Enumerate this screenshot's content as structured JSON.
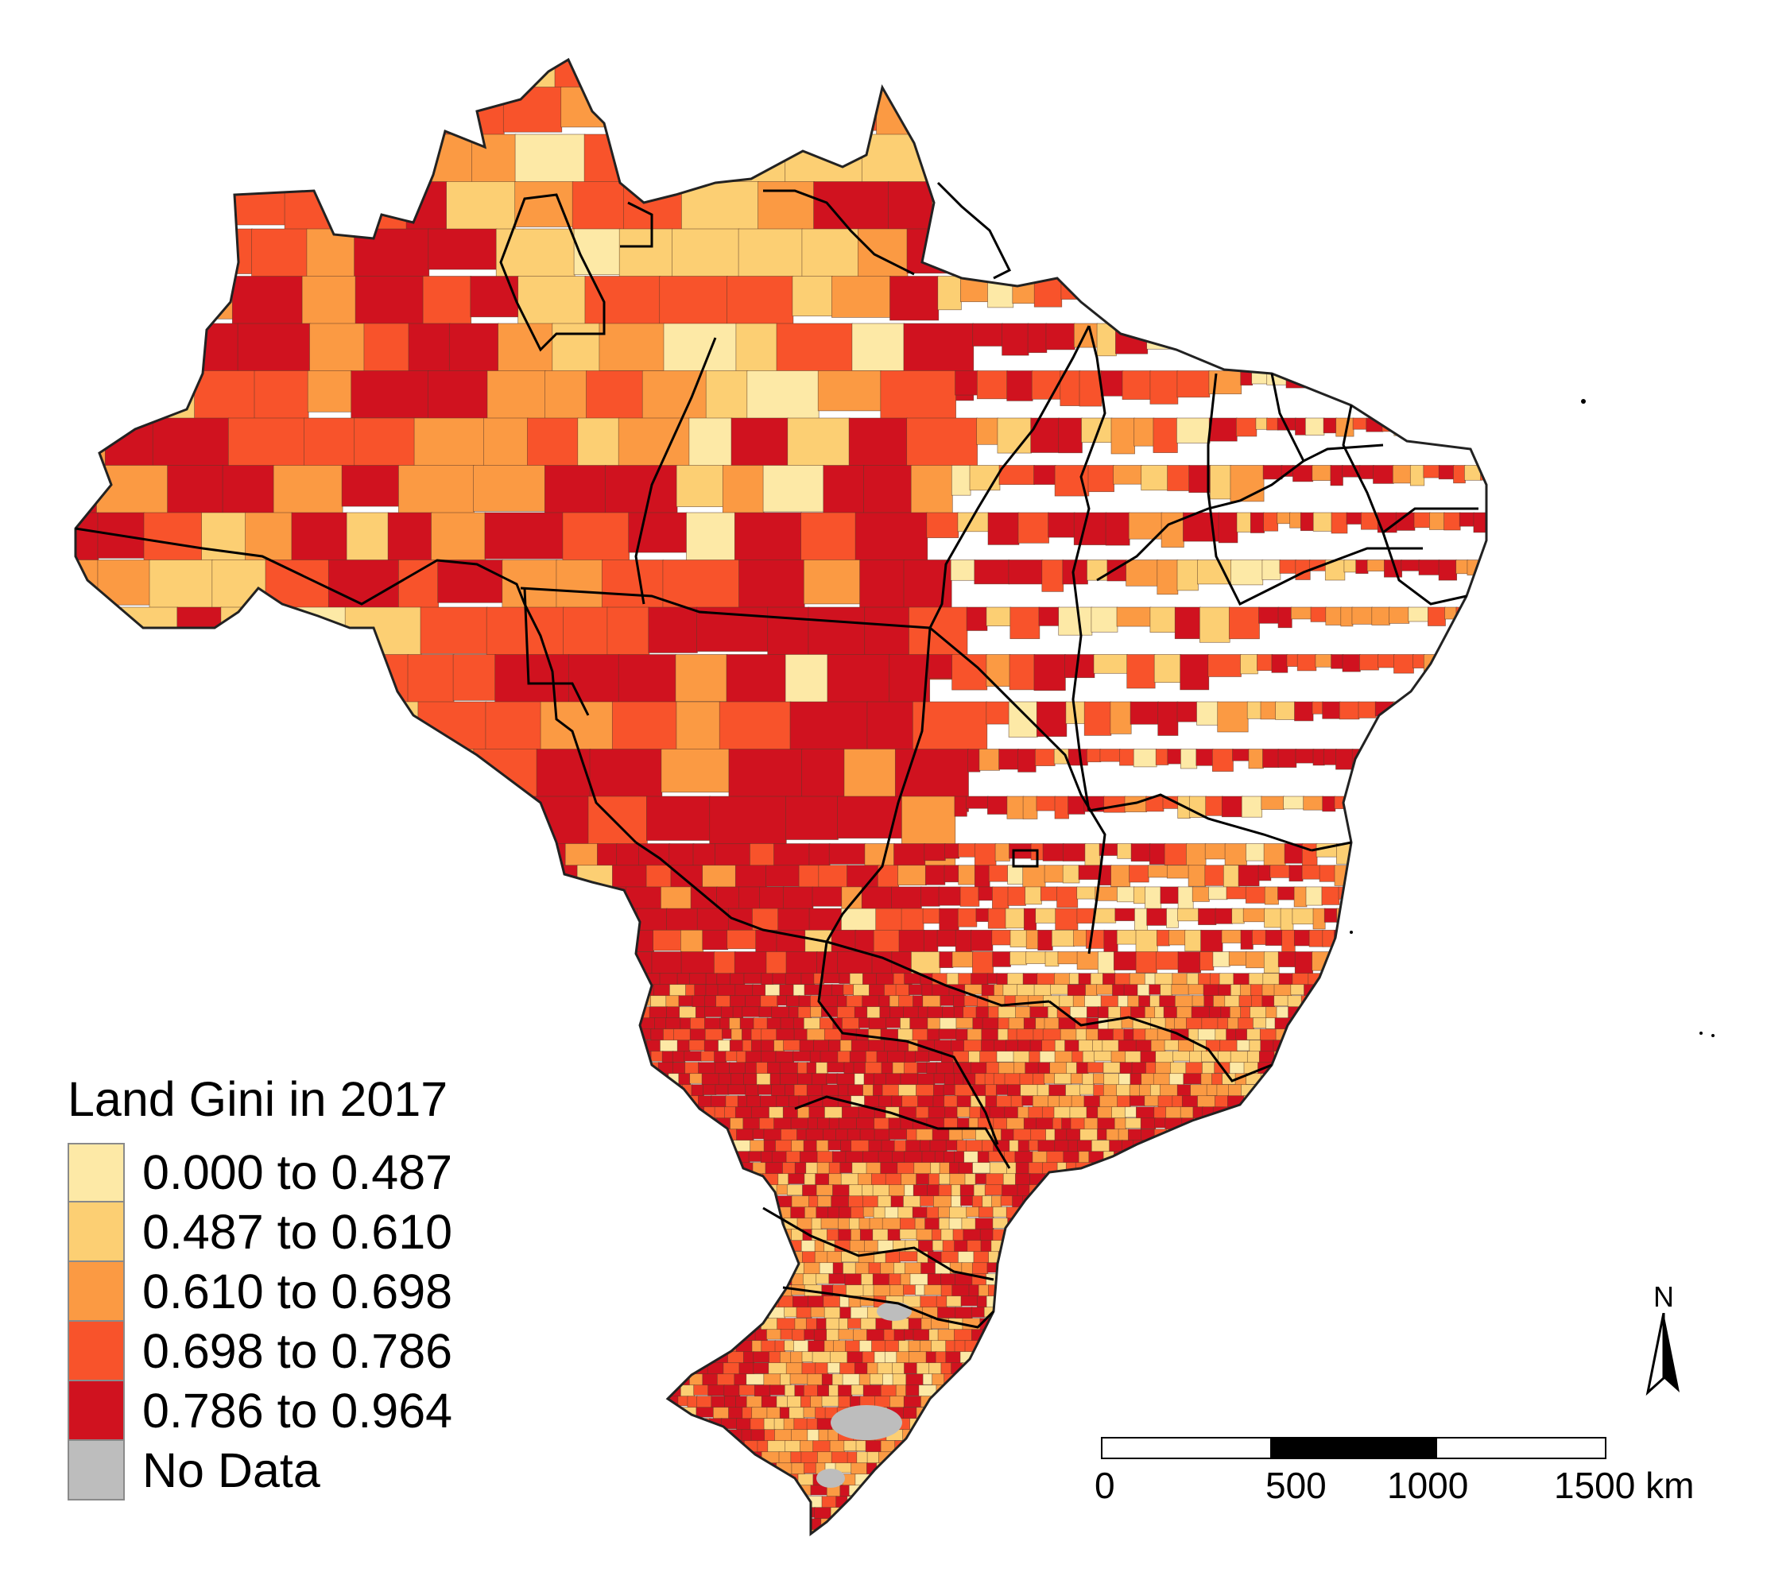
{
  "map": {
    "subject": "Brazil municipalities",
    "colors": {
      "class_1": "#fde9a6",
      "class_2": "#fccf73",
      "class_3": "#fb9a43",
      "class_4": "#f8532b",
      "class_5": "#d0121f",
      "no_data": "#bdbdbd",
      "municipality_border": "#5a3a2a",
      "state_border": "#000000"
    }
  },
  "legend": {
    "title": "Land Gini in 2017",
    "items": [
      {
        "label": "0.000 to 0.487",
        "color": "#fde9a6"
      },
      {
        "label": "0.487 to 0.610",
        "color": "#fccf73"
      },
      {
        "label": "0.610 to 0.698",
        "color": "#fb9a43"
      },
      {
        "label": "0.698 to 0.786",
        "color": "#f8532b"
      },
      {
        "label": "0.786 to 0.964",
        "color": "#d0121f"
      },
      {
        "label": "No Data",
        "color": "#bdbdbd"
      }
    ]
  },
  "scale_bar": {
    "ticks": [
      "0",
      "500",
      "1000",
      "1500 km"
    ],
    "segment_colors": [
      "#ffffff",
      "#000000",
      "#ffffff"
    ]
  },
  "north_arrow": {
    "label": "N",
    "icon": "north-arrow-icon"
  }
}
